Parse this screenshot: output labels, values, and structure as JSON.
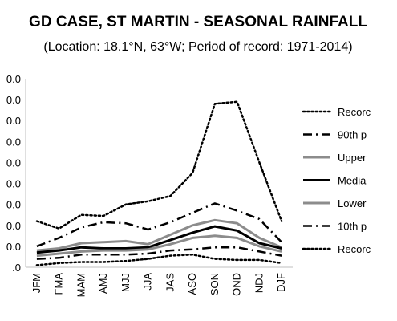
{
  "chart_data": {
    "type": "line",
    "title": "GD CASE, ST MARTIN - SEASONAL RAINFALL",
    "subtitle": "(Location: 18.1°N, 63°W; Period of record: 1971-2014)",
    "xlabel": "",
    "ylabel": "",
    "categories": [
      "JFM",
      "FMA",
      "MAM",
      "AMJ",
      "MJJ",
      "JJA",
      "JAS",
      "ASO",
      "SON",
      "OND",
      "NDJ",
      "DJF"
    ],
    "ylim": [
      0,
      900
    ],
    "ytick_labels": [
      ".0",
      "0.0",
      "0.0",
      "0.0",
      "0.0",
      "0.0",
      "0.0",
      "0.0",
      "0.0",
      "0.0"
    ],
    "grid": false,
    "legend": "right",
    "series": [
      {
        "name": "Recorc",
        "style": "dotted",
        "color": "#000000",
        "values": [
          220,
          185,
          250,
          245,
          300,
          315,
          340,
          450,
          780,
          790,
          500,
          220
        ]
      },
      {
        "name": "90th p",
        "style": "dashdot",
        "color": "#000000",
        "values": [
          100,
          140,
          190,
          215,
          210,
          180,
          215,
          260,
          305,
          270,
          230,
          120
        ]
      },
      {
        "name": "Upper",
        "style": "solid",
        "color": "#8c8c8c",
        "values": [
          80,
          90,
          115,
          120,
          125,
          110,
          155,
          200,
          225,
          210,
          140,
          95
        ]
      },
      {
        "name": "Media",
        "style": "solid",
        "color": "#000000",
        "values": [
          70,
          80,
          95,
          90,
          90,
          95,
          130,
          165,
          195,
          175,
          115,
          90
        ]
      },
      {
        "name": "Lower",
        "style": "solid",
        "color": "#8c8c8c",
        "values": [
          55,
          65,
          75,
          80,
          80,
          85,
          110,
          140,
          150,
          140,
          100,
          75
        ]
      },
      {
        "name": "10th p",
        "style": "dashdot",
        "color": "#000000",
        "values": [
          40,
          45,
          60,
          60,
          60,
          65,
          80,
          85,
          95,
          95,
          75,
          55
        ]
      },
      {
        "name": "Recorc",
        "style": "dotted",
        "color": "#000000",
        "values": [
          10,
          20,
          25,
          25,
          30,
          40,
          55,
          60,
          40,
          35,
          35,
          20
        ]
      }
    ]
  }
}
